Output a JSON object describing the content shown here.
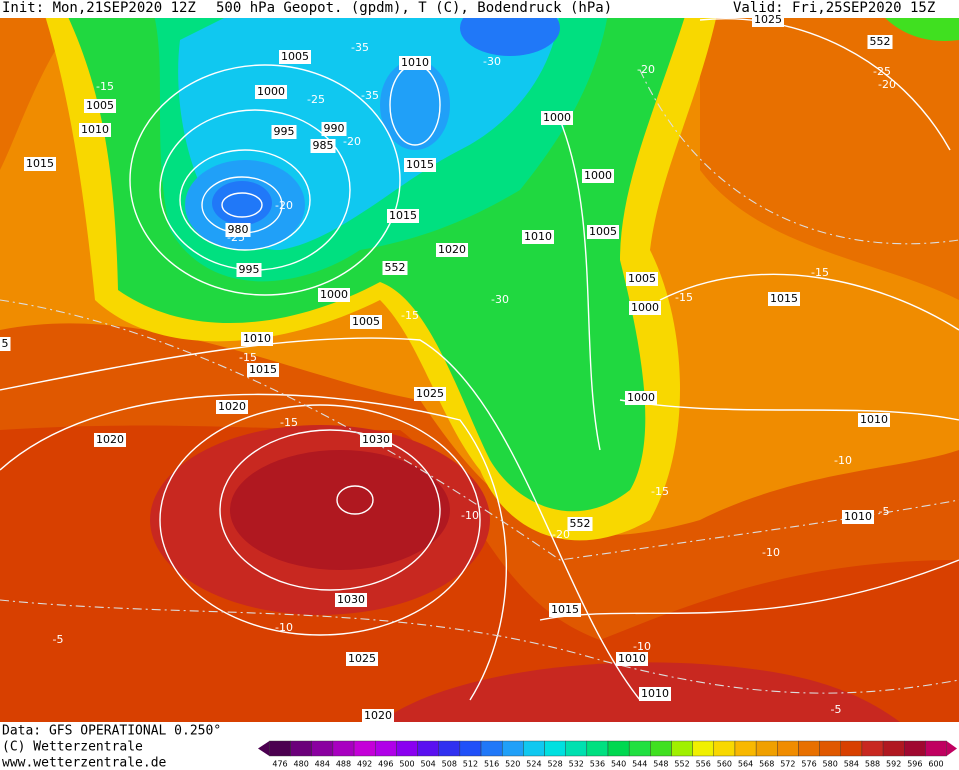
{
  "header": {
    "init": "Init: Mon,21SEP2020 12Z",
    "title": "500 hPa Geopot. (gpdm), T (C), Bodendruck (hPa)",
    "valid": "Valid: Fri,25SEP2020 15Z"
  },
  "map": {
    "labels": [
      "1005",
      "-35",
      "1010",
      "-30",
      "-20",
      "1025",
      "552",
      "-25",
      "-20",
      "-15",
      "1005",
      "1010",
      "1000",
      "-25",
      "-35",
      "1000",
      "990",
      "995",
      "985",
      "-20",
      "1015",
      "1015",
      "1000",
      "-20",
      "1015",
      "980",
      "-25",
      "1010",
      "1005",
      "1020",
      "995",
      "552",
      "-15",
      "1000",
      "1005",
      "-30",
      "1015",
      "-15",
      "1000",
      "1005",
      "-15",
      "1010",
      "-15",
      "1015",
      "1025",
      "1000",
      "1020",
      "-15",
      "1010",
      "1020",
      "1030",
      "-10",
      "-15",
      "-10",
      "1010",
      "-5",
      "552",
      "-20",
      "-10",
      "1030",
      "1015",
      "-10",
      "-5",
      "-10",
      "1010",
      "1025",
      "1010",
      "-5",
      "1020",
      "5"
    ]
  },
  "footer": {
    "source": "Data: GFS OPERATIONAL 0.250°",
    "copyright": "(C) Wetterzentrale",
    "url": "www.wetterzentrale.de"
  },
  "colorbar": {
    "ticks": [
      476,
      480,
      484,
      488,
      492,
      496,
      500,
      504,
      508,
      512,
      516,
      520,
      524,
      528,
      532,
      536,
      540,
      544,
      548,
      552,
      556,
      560,
      564,
      568,
      572,
      576,
      580,
      584,
      588,
      592,
      596,
      600
    ],
    "colors": [
      "#4b0050",
      "#6b007a",
      "#8a00a0",
      "#a800c0",
      "#c400d8",
      "#b000e8",
      "#8a00f0",
      "#5a10f0",
      "#3030f0",
      "#2050f8",
      "#2078f8",
      "#20a0f8",
      "#10c8f0",
      "#00e0e0",
      "#00e0b0",
      "#00e080",
      "#00d850",
      "#20e040",
      "#40e020",
      "#a0f000",
      "#f0f000",
      "#f8d800",
      "#f8b800",
      "#f0a000",
      "#f08c00",
      "#e87000",
      "#e05800",
      "#d84000",
      "#c82820",
      "#b01820",
      "#a00830",
      "#c00060"
    ]
  }
}
